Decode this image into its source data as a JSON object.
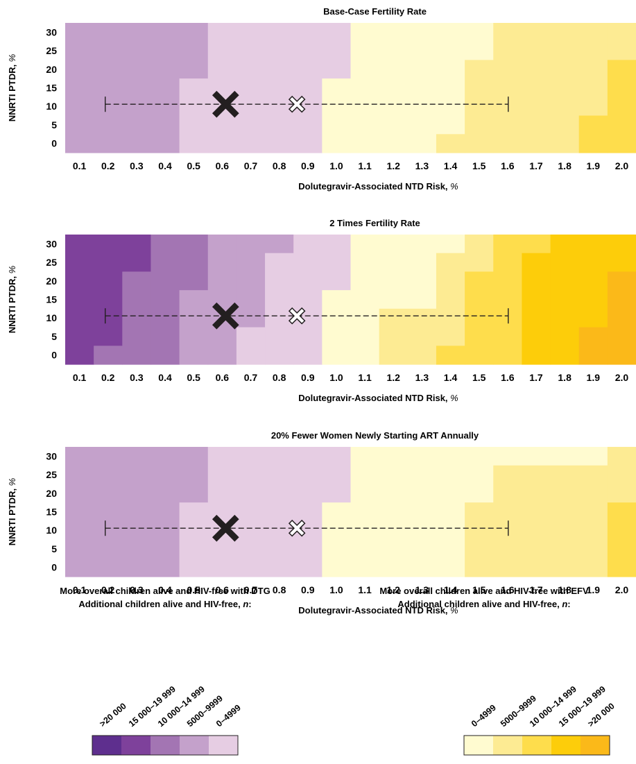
{
  "chart_data": {
    "panels": [
      {
        "type": "heatmap",
        "title": "Base-Case Fertility Rate",
        "xlabel": "Dolutegravir-Associated NTD Risk, %",
        "ylabel": "NNRTI PTDR, %",
        "x_ticks": [
          "0.1",
          "0.2",
          "0.3",
          "0.4",
          "0.5",
          "0.6",
          "0.7",
          "0.8",
          "0.9",
          "1.0",
          "1.1",
          "1.2",
          "1.3",
          "1.4",
          "1.5",
          "1.6",
          "1.7",
          "1.8",
          "1.9",
          "2.0"
        ],
        "y_ticks": [
          "30",
          "25",
          "20",
          "15",
          "10",
          "5",
          "0"
        ],
        "xlim": [
          0.05,
          2.05
        ],
        "ylim": [
          -2.5,
          32.5
        ],
        "regions": [
          {
            "category": "DTG 5000–9999",
            "x0": 0.05,
            "x1": 0.45,
            "y0": -2.5,
            "y1": 32.5
          },
          {
            "category": "DTG 5000–9999",
            "x0": 0.45,
            "x1": 0.55,
            "y0": 17.5,
            "y1": 32.5
          },
          {
            "category": "DTG 0–4999",
            "x0": 0.45,
            "x1": 0.55,
            "y0": -2.5,
            "y1": 17.5
          },
          {
            "category": "DTG 0–4999",
            "x0": 0.55,
            "x1": 0.95,
            "y0": -2.5,
            "y1": 32.5
          },
          {
            "category": "DTG 0–4999",
            "x0": 0.95,
            "x1": 1.05,
            "y0": 17.5,
            "y1": 32.5
          },
          {
            "category": "EFV 0–4999",
            "x0": 0.95,
            "x1": 1.05,
            "y0": -2.5,
            "y1": 17.5
          },
          {
            "category": "EFV 0–4999",
            "x0": 1.05,
            "x1": 1.35,
            "y0": -2.5,
            "y1": 32.5
          },
          {
            "category": "EFV 0–4999",
            "x0": 1.35,
            "x1": 1.45,
            "y0": 2.5,
            "y1": 32.5
          },
          {
            "category": "EFV 5000–9999",
            "x0": 1.35,
            "x1": 1.45,
            "y0": -2.5,
            "y1": 2.5
          },
          {
            "category": "EFV 0–4999",
            "x0": 1.45,
            "x1": 1.55,
            "y0": 22.5,
            "y1": 32.5
          },
          {
            "category": "EFV 5000–9999",
            "x0": 1.45,
            "x1": 1.55,
            "y0": -2.5,
            "y1": 22.5
          },
          {
            "category": "EFV 5000–9999",
            "x0": 1.55,
            "x1": 1.85,
            "y0": -2.5,
            "y1": 32.5
          },
          {
            "category": "EFV 5000–9999",
            "x0": 1.85,
            "x1": 1.95,
            "y0": 7.5,
            "y1": 32.5
          },
          {
            "category": "EFV 10000–14999",
            "x0": 1.85,
            "x1": 1.95,
            "y0": -2.5,
            "y1": 7.5
          },
          {
            "category": "EFV 5000–9999",
            "x0": 1.95,
            "x1": 2.05,
            "y0": 22.5,
            "y1": 32.5
          },
          {
            "category": "EFV 10000–14999",
            "x0": 1.95,
            "x1": 2.05,
            "y0": -2.5,
            "y1": 22.5
          }
        ]
      },
      {
        "type": "heatmap",
        "title": "2 Times Fertility Rate",
        "xlabel": "Dolutegravir-Associated NTD Risk, %",
        "ylabel": "NNRTI PTDR, %",
        "x_ticks": [
          "0.1",
          "0.2",
          "0.3",
          "0.4",
          "0.5",
          "0.6",
          "0.7",
          "0.8",
          "0.9",
          "1.0",
          "1.1",
          "1.2",
          "1.3",
          "1.4",
          "1.5",
          "1.6",
          "1.7",
          "1.8",
          "1.9",
          "2.0"
        ],
        "y_ticks": [
          "30",
          "25",
          "20",
          "15",
          "10",
          "5",
          "0"
        ],
        "xlim": [
          0.05,
          2.05
        ],
        "ylim": [
          -2.5,
          32.5
        ],
        "regions": [
          {
            "category": "DTG 15000–19999",
            "x0": 0.05,
            "x1": 0.15,
            "y0": -2.5,
            "y1": 32.5
          },
          {
            "category": "DTG 15000–19999",
            "x0": 0.15,
            "x1": 0.25,
            "y0": 2.5,
            "y1": 32.5
          },
          {
            "category": "DTG 10000–14999",
            "x0": 0.15,
            "x1": 0.25,
            "y0": -2.5,
            "y1": 2.5
          },
          {
            "category": "DTG 15000–19999",
            "x0": 0.25,
            "x1": 0.35,
            "y0": 22.5,
            "y1": 32.5
          },
          {
            "category": "DTG 10000–14999",
            "x0": 0.25,
            "x1": 0.35,
            "y0": -2.5,
            "y1": 22.5
          },
          {
            "category": "DTG 10000–14999",
            "x0": 0.35,
            "x1": 0.45,
            "y0": -2.5,
            "y1": 32.5
          },
          {
            "category": "DTG 10000–14999",
            "x0": 0.45,
            "x1": 0.55,
            "y0": 17.5,
            "y1": 32.5
          },
          {
            "category": "DTG 5000–9999",
            "x0": 0.45,
            "x1": 0.55,
            "y0": -2.5,
            "y1": 17.5
          },
          {
            "category": "DTG 5000–9999",
            "x0": 0.55,
            "x1": 0.65,
            "y0": -2.5,
            "y1": 32.5
          },
          {
            "category": "DTG 5000–9999",
            "x0": 0.65,
            "x1": 0.75,
            "y0": 7.5,
            "y1": 32.5
          },
          {
            "category": "DTG 0–4999",
            "x0": 0.65,
            "x1": 0.75,
            "y0": -2.5,
            "y1": 7.5
          },
          {
            "category": "DTG 5000–9999",
            "x0": 0.75,
            "x1": 0.85,
            "y0": 27.5,
            "y1": 32.5
          },
          {
            "category": "DTG 0–4999",
            "x0": 0.75,
            "x1": 0.85,
            "y0": -2.5,
            "y1": 27.5
          },
          {
            "category": "DTG 0–4999",
            "x0": 0.85,
            "x1": 0.95,
            "y0": -2.5,
            "y1": 32.5
          },
          {
            "category": "DTG 0–4999",
            "x0": 0.95,
            "x1": 1.05,
            "y0": 17.5,
            "y1": 32.5
          },
          {
            "category": "EFV 0–4999",
            "x0": 0.95,
            "x1": 1.05,
            "y0": -2.5,
            "y1": 17.5
          },
          {
            "category": "EFV 0–4999",
            "x0": 1.05,
            "x1": 1.15,
            "y0": -2.5,
            "y1": 32.5
          },
          {
            "category": "EFV 0–4999",
            "x0": 1.15,
            "x1": 1.35,
            "y0": 12.5,
            "y1": 32.5
          },
          {
            "category": "EFV 5000–9999",
            "x0": 1.15,
            "x1": 1.35,
            "y0": -2.5,
            "y1": 12.5
          },
          {
            "category": "EFV 0–4999",
            "x0": 1.35,
            "x1": 1.45,
            "y0": 27.5,
            "y1": 32.5
          },
          {
            "category": "EFV 5000–9999",
            "x0": 1.35,
            "x1": 1.45,
            "y0": 2.5,
            "y1": 27.5
          },
          {
            "category": "EFV 10000–14999",
            "x0": 1.35,
            "x1": 1.45,
            "y0": -2.5,
            "y1": 2.5
          },
          {
            "category": "EFV 5000–9999",
            "x0": 1.45,
            "x1": 1.55,
            "y0": 22.5,
            "y1": 32.5
          },
          {
            "category": "EFV 10000–14999",
            "x0": 1.45,
            "x1": 1.55,
            "y0": -2.5,
            "y1": 22.5
          },
          {
            "category": "EFV 10000–14999",
            "x0": 1.55,
            "x1": 1.65,
            "y0": 12.5,
            "y1": 32.5
          },
          {
            "category": "EFV 10000–14999",
            "x0": 1.55,
            "x1": 1.65,
            "y0": -2.5,
            "y1": 12.5
          },
          {
            "category": "EFV 10000–14999",
            "x0": 1.65,
            "x1": 1.75,
            "y0": 27.5,
            "y1": 32.5
          },
          {
            "category": "EFV 15000–19999",
            "x0": 1.65,
            "x1": 1.75,
            "y0": -2.5,
            "y1": 27.5
          },
          {
            "category": "EFV 15000–19999",
            "x0": 1.75,
            "x1": 1.85,
            "y0": -2.5,
            "y1": 32.5
          },
          {
            "category": "EFV 15000–19999",
            "x0": 1.85,
            "x1": 1.95,
            "y0": 7.5,
            "y1": 32.5
          },
          {
            "category": "EFV >20000",
            "x0": 1.85,
            "x1": 1.95,
            "y0": -2.5,
            "y1": 7.5
          },
          {
            "category": "EFV 15000–19999",
            "x0": 1.95,
            "x1": 2.05,
            "y0": 22.5,
            "y1": 32.5
          },
          {
            "category": "EFV >20000",
            "x0": 1.95,
            "x1": 2.05,
            "y0": -2.5,
            "y1": 22.5
          }
        ]
      },
      {
        "type": "heatmap",
        "title": "20% Fewer Women Newly Starting ART Annually",
        "xlabel": "Dolutegravir-Associated NTD Risk, %",
        "ylabel": "NNRTI PTDR, %",
        "x_ticks": [
          "0.1",
          "0.2",
          "0.3",
          "0.4",
          "0.5",
          "0.6",
          "0.7",
          "0.8",
          "0.9",
          "1.0",
          "1.1",
          "1.2",
          "1.3",
          "1.4",
          "1.5",
          "1.6",
          "1.7",
          "1.8",
          "1.9",
          "2.0"
        ],
        "y_ticks": [
          "30",
          "25",
          "20",
          "15",
          "10",
          "5",
          "0"
        ],
        "xlim": [
          0.05,
          2.05
        ],
        "ylim": [
          -2.5,
          32.5
        ],
        "regions": [
          {
            "category": "DTG 5000–9999",
            "x0": 0.05,
            "x1": 0.45,
            "y0": -2.5,
            "y1": 32.5
          },
          {
            "category": "DTG 5000–9999",
            "x0": 0.45,
            "x1": 0.55,
            "y0": 17.5,
            "y1": 32.5
          },
          {
            "category": "DTG 0–4999",
            "x0": 0.45,
            "x1": 0.55,
            "y0": -2.5,
            "y1": 17.5
          },
          {
            "category": "DTG 0–4999",
            "x0": 0.55,
            "x1": 0.95,
            "y0": -2.5,
            "y1": 32.5
          },
          {
            "category": "DTG 0–4999",
            "x0": 0.95,
            "x1": 1.05,
            "y0": 17.5,
            "y1": 32.5
          },
          {
            "category": "EFV 0–4999",
            "x0": 0.95,
            "x1": 1.05,
            "y0": -2.5,
            "y1": 17.5
          },
          {
            "category": "EFV 0–4999",
            "x0": 1.05,
            "x1": 1.45,
            "y0": -2.5,
            "y1": 32.5
          },
          {
            "category": "EFV 0–4999",
            "x0": 1.45,
            "x1": 1.55,
            "y0": 17.5,
            "y1": 32.5
          },
          {
            "category": "EFV 5000–9999",
            "x0": 1.45,
            "x1": 1.55,
            "y0": -2.5,
            "y1": 17.5
          },
          {
            "category": "EFV 0–4999",
            "x0": 1.55,
            "x1": 1.95,
            "y0": 27.5,
            "y1": 32.5
          },
          {
            "category": "EFV 5000–9999",
            "x0": 1.55,
            "x1": 1.95,
            "y0": -2.5,
            "y1": 27.5
          },
          {
            "category": "EFV 5000–9999",
            "x0": 1.95,
            "x1": 2.05,
            "y0": 17.5,
            "y1": 32.5
          },
          {
            "category": "EFV 10000–14999",
            "x0": 1.95,
            "x1": 2.05,
            "y0": -2.5,
            "y1": 17.5
          }
        ]
      }
    ],
    "markers": {
      "base_case": {
        "x": 0.6,
        "y": 10
      },
      "alternative": {
        "x": 0.85,
        "y": 10
      },
      "range": {
        "x0": 0.2,
        "x1": 1.6,
        "y": 10
      }
    },
    "legend": {
      "dtg": {
        "title_line1": "More overall children alive and HIV-free with DTG",
        "title_line2_prefix": "Additional children alive and HIV-free, ",
        "title_line2_italic": "n",
        "title_line2_suffix": ":",
        "labels": [
          ">20 000",
          "15 000–19 999",
          "10 000–14 999",
          "5000–9999",
          "0–4999"
        ],
        "colors": [
          "#5e2f8e",
          "#7e419b",
          "#a375b3",
          "#c4a1cb",
          "#e6cde3"
        ]
      },
      "efv": {
        "title_line1": "More overall children alive and HIV-free with EFV",
        "title_line2_prefix": "Additional children alive and HIV-free, ",
        "title_line2_italic": "n",
        "title_line2_suffix": ":",
        "labels": [
          "0–4999",
          "5000–9999",
          "10 000–14 999",
          "15 000–19 999",
          ">20 000"
        ],
        "colors": [
          "#fffbd0",
          "#fdeb93",
          "#fedd4c",
          "#fdcd0a",
          "#fbb919"
        ]
      }
    },
    "category_colors": {
      "DTG >20000": "#5e2f8e",
      "DTG 15000–19999": "#7e419b",
      "DTG 10000–14999": "#a375b3",
      "DTG 5000–9999": "#c4a1cb",
      "DTG 0–4999": "#e6cde3",
      "EFV 0–4999": "#fffbd0",
      "EFV 5000–9999": "#fdeb93",
      "EFV 10000–14999": "#fedd4c",
      "EFV 15000–19999": "#fdcd0a",
      "EFV >20000": "#fbb919"
    }
  }
}
